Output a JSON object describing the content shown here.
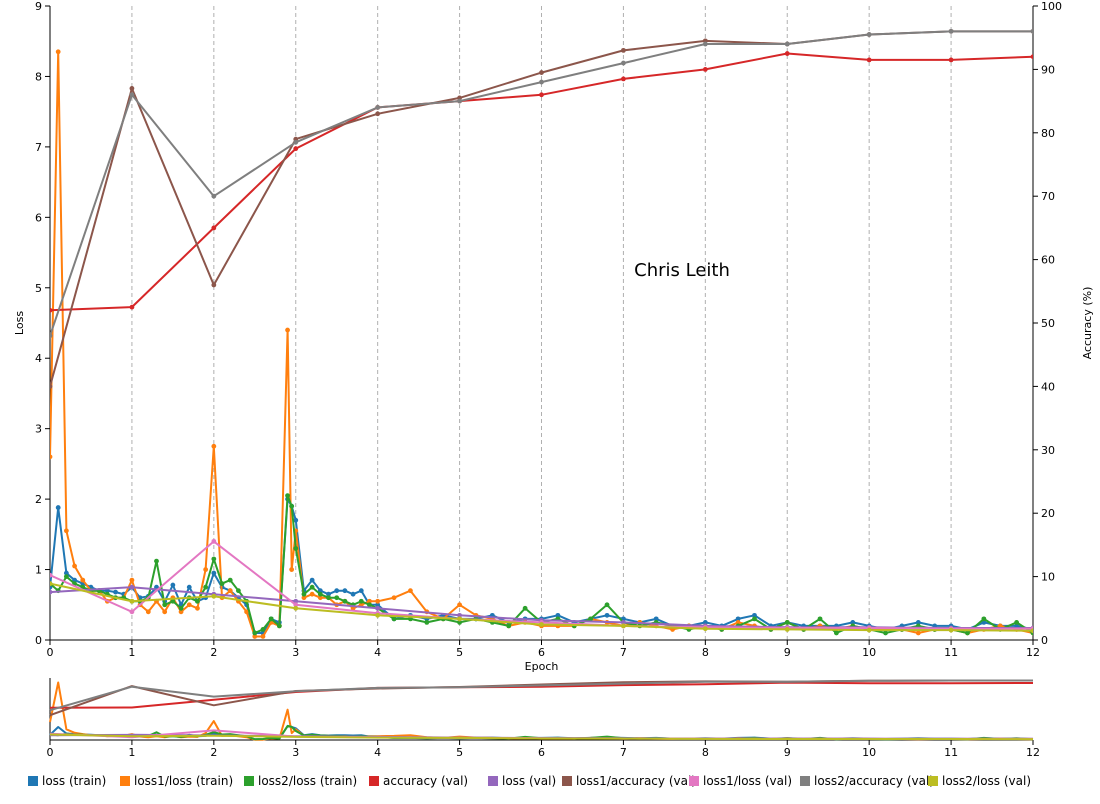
{
  "chart_data": {
    "type": "line",
    "watermark": "Chris Leith",
    "xlabel": "Epoch",
    "ylabel_left": "Loss",
    "ylabel_right": "Accuracy (%)",
    "xlim": [
      0,
      12
    ],
    "ylim_left": [
      0,
      9
    ],
    "ylim_right": [
      0,
      100
    ],
    "x_ticks": [
      "0",
      "1",
      "2",
      "3",
      "4",
      "5",
      "6",
      "7",
      "8",
      "9",
      "10",
      "11",
      "12"
    ],
    "y_left_ticks": [
      "0",
      "1",
      "2",
      "3",
      "4",
      "5",
      "6",
      "7",
      "8",
      "9"
    ],
    "y_right_ticks": [
      "0",
      "10",
      "20",
      "30",
      "40",
      "50",
      "60",
      "70",
      "80",
      "90",
      "100"
    ],
    "grid": "vertical dashed at each epoch",
    "legend_position": "bottom",
    "series": [
      {
        "name": "loss (train)",
        "axis": "left",
        "color": "#1f77b4",
        "markers": true,
        "x": [
          0,
          0.1,
          0.2,
          0.3,
          0.4,
          0.5,
          0.6,
          0.7,
          0.8,
          0.9,
          1.0,
          1.1,
          1.2,
          1.3,
          1.4,
          1.5,
          1.6,
          1.7,
          1.8,
          1.9,
          2.0,
          2.1,
          2.2,
          2.3,
          2.4,
          2.5,
          2.6,
          2.7,
          2.8,
          2.9,
          2.95,
          3.0,
          3.1,
          3.2,
          3.3,
          3.4,
          3.5,
          3.6,
          3.7,
          3.8,
          3.9,
          4.0,
          4.2,
          4.4,
          4.6,
          4.8,
          5.0,
          5.2,
          5.4,
          5.6,
          5.8,
          6.0,
          6.2,
          6.4,
          6.6,
          6.8,
          7.0,
          7.2,
          7.4,
          7.6,
          7.8,
          8.0,
          8.2,
          8.4,
          8.6,
          8.8,
          9.0,
          9.2,
          9.4,
          9.6,
          9.8,
          10.0,
          10.2,
          10.4,
          10.6,
          10.8,
          11.0,
          11.2,
          11.4,
          11.6,
          11.8,
          12.0
        ],
        "y": [
          0.75,
          1.88,
          0.95,
          0.85,
          0.8,
          0.75,
          0.7,
          0.7,
          0.68,
          0.65,
          0.75,
          0.6,
          0.62,
          0.75,
          0.55,
          0.78,
          0.5,
          0.75,
          0.55,
          0.6,
          0.95,
          0.75,
          0.7,
          0.6,
          0.5,
          0.1,
          0.1,
          0.3,
          0.25,
          2.0,
          1.9,
          1.7,
          0.7,
          0.85,
          0.7,
          0.65,
          0.7,
          0.7,
          0.65,
          0.7,
          0.5,
          0.5,
          0.3,
          0.35,
          0.3,
          0.35,
          0.3,
          0.3,
          0.35,
          0.25,
          0.3,
          0.3,
          0.35,
          0.25,
          0.3,
          0.35,
          0.3,
          0.25,
          0.3,
          0.2,
          0.2,
          0.25,
          0.2,
          0.3,
          0.35,
          0.2,
          0.25,
          0.2,
          0.2,
          0.2,
          0.25,
          0.2,
          0.15,
          0.2,
          0.25,
          0.2,
          0.2,
          0.15,
          0.25,
          0.2,
          0.2,
          0.15
        ]
      },
      {
        "name": "loss1/loss (train)",
        "axis": "left",
        "color": "#ff7f0e",
        "markers": true,
        "x": [
          0,
          0.1,
          0.2,
          0.3,
          0.4,
          0.5,
          0.6,
          0.7,
          0.8,
          0.9,
          1.0,
          1.1,
          1.2,
          1.3,
          1.4,
          1.5,
          1.6,
          1.7,
          1.8,
          1.9,
          2.0,
          2.1,
          2.2,
          2.3,
          2.4,
          2.5,
          2.6,
          2.7,
          2.8,
          2.9,
          2.95,
          3.0,
          3.1,
          3.2,
          3.3,
          3.4,
          3.5,
          3.6,
          3.7,
          3.8,
          3.9,
          4.0,
          4.2,
          4.4,
          4.6,
          4.8,
          5.0,
          5.2,
          5.4,
          5.6,
          5.8,
          6.0,
          6.2,
          6.4,
          6.6,
          6.8,
          7.0,
          7.2,
          7.4,
          7.6,
          7.8,
          8.0,
          8.2,
          8.4,
          8.6,
          8.8,
          9.0,
          9.2,
          9.4,
          9.6,
          9.8,
          10.0,
          10.2,
          10.4,
          10.6,
          10.8,
          11.0,
          11.2,
          11.4,
          11.6,
          11.8,
          12.0
        ],
        "y": [
          2.6,
          8.35,
          1.55,
          1.05,
          0.85,
          0.7,
          0.7,
          0.55,
          0.6,
          0.6,
          0.85,
          0.5,
          0.4,
          0.55,
          0.4,
          0.6,
          0.4,
          0.5,
          0.45,
          1.0,
          2.75,
          0.6,
          0.7,
          0.55,
          0.4,
          0.05,
          0.05,
          0.25,
          0.2,
          4.4,
          1.0,
          1.55,
          0.6,
          0.65,
          0.6,
          0.6,
          0.5,
          0.55,
          0.45,
          0.5,
          0.55,
          0.55,
          0.6,
          0.7,
          0.4,
          0.3,
          0.5,
          0.35,
          0.3,
          0.2,
          0.25,
          0.2,
          0.2,
          0.2,
          0.3,
          0.25,
          0.2,
          0.25,
          0.2,
          0.15,
          0.2,
          0.2,
          0.15,
          0.25,
          0.2,
          0.15,
          0.25,
          0.15,
          0.2,
          0.15,
          0.2,
          0.15,
          0.15,
          0.15,
          0.1,
          0.15,
          0.15,
          0.1,
          0.15,
          0.2,
          0.15,
          0.1
        ]
      },
      {
        "name": "loss2/loss (train)",
        "axis": "left",
        "color": "#2ca02c",
        "markers": true,
        "x": [
          0,
          0.1,
          0.2,
          0.3,
          0.4,
          0.5,
          0.6,
          0.7,
          0.8,
          0.9,
          1.0,
          1.1,
          1.2,
          1.3,
          1.4,
          1.5,
          1.6,
          1.7,
          1.8,
          1.9,
          2.0,
          2.1,
          2.2,
          2.3,
          2.4,
          2.5,
          2.6,
          2.7,
          2.8,
          2.9,
          2.95,
          3.0,
          3.1,
          3.2,
          3.3,
          3.4,
          3.5,
          3.6,
          3.7,
          3.8,
          3.9,
          4.0,
          4.2,
          4.4,
          4.6,
          4.8,
          5.0,
          5.2,
          5.4,
          5.6,
          5.8,
          6.0,
          6.2,
          6.4,
          6.6,
          6.8,
          7.0,
          7.2,
          7.4,
          7.6,
          7.8,
          8.0,
          8.2,
          8.4,
          8.6,
          8.8,
          9.0,
          9.2,
          9.4,
          9.6,
          9.8,
          10.0,
          10.2,
          10.4,
          10.6,
          10.8,
          11.0,
          11.2,
          11.4,
          11.6,
          11.8,
          12.0
        ],
        "y": [
          0.8,
          0.7,
          0.9,
          0.8,
          0.75,
          0.7,
          0.7,
          0.65,
          0.6,
          0.6,
          0.55,
          0.55,
          0.6,
          1.12,
          0.5,
          0.55,
          0.45,
          0.6,
          0.55,
          0.75,
          1.15,
          0.8,
          0.85,
          0.7,
          0.55,
          0.1,
          0.15,
          0.3,
          0.2,
          2.05,
          1.9,
          1.3,
          0.65,
          0.75,
          0.65,
          0.6,
          0.6,
          0.55,
          0.5,
          0.55,
          0.5,
          0.45,
          0.3,
          0.3,
          0.25,
          0.3,
          0.25,
          0.3,
          0.25,
          0.2,
          0.45,
          0.25,
          0.3,
          0.2,
          0.3,
          0.5,
          0.25,
          0.2,
          0.25,
          0.2,
          0.15,
          0.2,
          0.15,
          0.2,
          0.3,
          0.15,
          0.25,
          0.15,
          0.3,
          0.1,
          0.2,
          0.15,
          0.1,
          0.15,
          0.2,
          0.15,
          0.15,
          0.1,
          0.3,
          0.15,
          0.25,
          0.1
        ]
      },
      {
        "name": "accuracy (val)",
        "axis": "right",
        "color": "#d62728",
        "markers": true,
        "x": [
          0,
          1,
          2,
          3,
          4,
          5,
          6,
          7,
          8,
          9,
          10,
          11,
          12
        ],
        "y": [
          52.0,
          52.5,
          65.0,
          77.5,
          84.0,
          85.0,
          86.0,
          88.5,
          90.0,
          92.5,
          91.5,
          91.5,
          92.0
        ]
      },
      {
        "name": "loss (val)",
        "axis": "left",
        "color": "#9467bd",
        "markers": true,
        "x": [
          0,
          1,
          2,
          3,
          4,
          5,
          6,
          7,
          8,
          9,
          10,
          11,
          12
        ],
        "y": [
          0.68,
          0.75,
          0.65,
          0.55,
          0.45,
          0.35,
          0.28,
          0.25,
          0.2,
          0.18,
          0.18,
          0.17,
          0.17
        ]
      },
      {
        "name": "loss1/accuracy (val)",
        "axis": "right",
        "color": "#8c564b",
        "markers": true,
        "x": [
          0,
          1,
          2,
          3,
          4,
          5,
          6,
          7,
          8,
          9,
          10,
          11,
          12
        ],
        "y": [
          40.0,
          87.0,
          56.0,
          79.0,
          83.0,
          85.5,
          89.5,
          93.0,
          94.5,
          94.0,
          95.5,
          96.0,
          96.0
        ]
      },
      {
        "name": "loss1/loss (val)",
        "axis": "left",
        "color": "#e377c2",
        "markers": true,
        "x": [
          0,
          1,
          2,
          3,
          4,
          5,
          6,
          7,
          8,
          9,
          10,
          11,
          12
        ],
        "y": [
          0.92,
          0.4,
          1.4,
          0.5,
          0.38,
          0.3,
          0.25,
          0.2,
          0.18,
          0.17,
          0.17,
          0.16,
          0.16
        ]
      },
      {
        "name": "loss2/accuracy (val)",
        "axis": "right",
        "color": "#7f7f7f",
        "markers": true,
        "x": [
          0,
          1,
          2,
          3,
          4,
          5,
          6,
          7,
          8,
          9,
          10,
          11,
          12
        ],
        "y": [
          48.0,
          86.0,
          70.0,
          78.5,
          84.0,
          85.0,
          88.0,
          91.0,
          94.0,
          94.0,
          95.5,
          96.0,
          96.0
        ]
      },
      {
        "name": "loss2/loss (val)",
        "axis": "left",
        "color": "#bcbd22",
        "markers": true,
        "x": [
          0,
          1,
          2,
          3,
          4,
          5,
          6,
          7,
          8,
          9,
          10,
          11,
          12
        ],
        "y": [
          0.8,
          0.55,
          0.62,
          0.45,
          0.35,
          0.3,
          0.22,
          0.2,
          0.16,
          0.15,
          0.14,
          0.14,
          0.13
        ]
      }
    ]
  }
}
